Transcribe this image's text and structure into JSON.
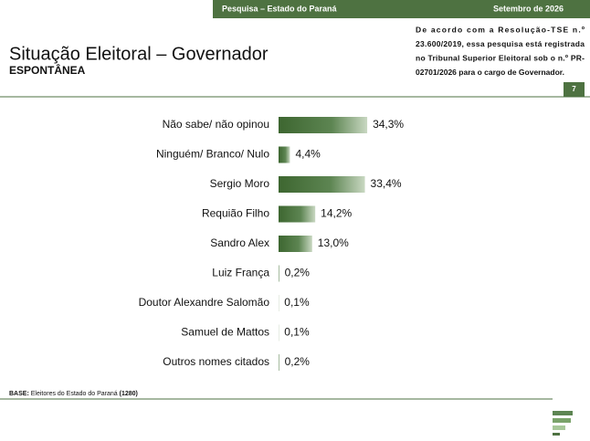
{
  "header": {
    "survey": "Pesquisa – Estado do Paraná",
    "date": "Setembro de 2026"
  },
  "note_lines": [
    "De acordo com a Resolução-TSE n.º",
    "23.600/2019, essa pesquisa está registrada",
    "no Tribunal Superior Eleitoral sob o n.º PR-",
    "02701/2026 para o cargo de Governador."
  ],
  "page_number": "7",
  "base": {
    "label": "BASE:",
    "text": "Eleitores do Estado do Paraná",
    "count": "(1280)"
  },
  "chart_data": {
    "type": "bar",
    "orientation": "horizontal",
    "title": "Situação Eleitoral – Governador",
    "subtitle": "ESPONTÂNEA",
    "categories": [
      "Não sabe/ não opinou",
      "Ninguém/ Branco/ Nulo",
      "Sergio Moro",
      "Requião Filho",
      "Sandro Alex",
      "Luiz França",
      "Doutor Alexandre Salomão",
      "Samuel de Mattos",
      "Outros nomes citados"
    ],
    "values": [
      34.3,
      4.4,
      33.4,
      14.2,
      13.0,
      0.2,
      0.1,
      0.1,
      0.2
    ],
    "value_labels": [
      "34,3%",
      "4,4%",
      "33,4%",
      "14,2%",
      "13,0%",
      "0,2%",
      "0,1%",
      "0,1%",
      "0,2%"
    ],
    "color": "#3d6630"
  }
}
